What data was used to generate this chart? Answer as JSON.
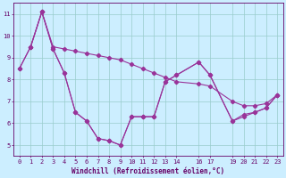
{
  "xlabel": "Windchill (Refroidissement éolien,°C)",
  "bg_color": "#cceeff",
  "line_color": "#993399",
  "grid_color": "#99cccc",
  "axis_color": "#660066",
  "xlim": [
    -0.5,
    23.5
  ],
  "ylim": [
    4.5,
    11.5
  ],
  "yticks": [
    5,
    6,
    7,
    8,
    9,
    10,
    11
  ],
  "xticks": [
    0,
    1,
    2,
    3,
    4,
    5,
    6,
    7,
    8,
    9,
    10,
    11,
    12,
    13,
    14,
    16,
    17,
    19,
    20,
    21,
    22,
    23
  ],
  "series1_x": [
    0,
    1,
    2,
    3,
    4,
    5,
    6,
    7,
    8,
    9,
    10,
    11,
    12,
    13,
    14,
    16,
    17,
    19,
    20,
    21,
    22,
    23
  ],
  "series1_y": [
    8.5,
    9.5,
    11.1,
    9.4,
    8.3,
    6.5,
    6.1,
    5.3,
    5.2,
    5.0,
    6.3,
    6.3,
    6.3,
    7.9,
    8.2,
    8.8,
    8.2,
    6.1,
    6.4,
    6.5,
    6.7,
    7.3
  ],
  "series2_x": [
    0,
    1,
    2,
    3,
    4,
    5,
    6,
    7,
    8,
    9,
    10,
    11,
    12,
    13,
    14,
    16,
    17,
    19,
    20,
    21,
    22,
    23
  ],
  "series2_y": [
    8.5,
    9.5,
    11.1,
    9.5,
    9.4,
    9.3,
    9.2,
    9.1,
    9.0,
    8.9,
    8.7,
    8.5,
    8.3,
    8.1,
    7.9,
    7.8,
    7.7,
    7.0,
    6.8,
    6.8,
    6.9,
    7.3
  ],
  "series3_x": [
    1,
    2,
    3,
    4,
    5,
    6,
    7,
    8,
    9,
    10,
    11,
    12,
    13,
    14,
    16,
    17,
    19,
    20,
    21,
    22,
    23
  ],
  "series3_y": [
    9.5,
    11.1,
    9.4,
    8.3,
    6.5,
    6.1,
    5.3,
    5.2,
    5.0,
    6.3,
    6.3,
    6.3,
    7.9,
    8.2,
    8.8,
    8.2,
    6.1,
    6.3,
    6.5,
    6.7,
    7.3
  ],
  "marker": "D",
  "markersize": 2.2,
  "linewidth": 0.8,
  "tick_fontsize": 5.0,
  "label_fontsize": 5.5
}
